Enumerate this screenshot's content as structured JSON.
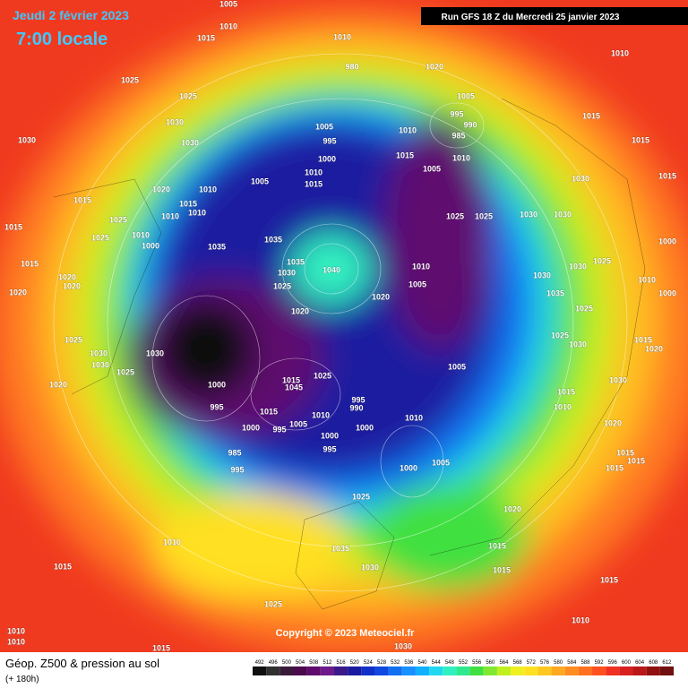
{
  "header": {
    "date": "Jeudi 2 février 2023",
    "time": "7:00 locale",
    "run": "Run GFS 18 Z du Mercredi 25 janvier 2023"
  },
  "copyright": "Copyright © 2023 Meteociel.fr",
  "footer": {
    "title": "Géop. Z500 & pression au sol",
    "lead": "(+ 180h)"
  },
  "colorbar": {
    "ticks": [
      492,
      496,
      500,
      504,
      508,
      512,
      516,
      520,
      524,
      528,
      532,
      536,
      540,
      544,
      548,
      552,
      556,
      560,
      564,
      568,
      572,
      576,
      580,
      584,
      588,
      592,
      596,
      600,
      604,
      608,
      612
    ],
    "colors": [
      "#101010",
      "#303030",
      "#3a1a3a",
      "#4b0a4b",
      "#5e0a6e",
      "#6e1a8a",
      "#3a1a8a",
      "#1a1aa0",
      "#1030c8",
      "#1048e0",
      "#1070f0",
      "#1890ff",
      "#10b0ff",
      "#20d8f0",
      "#30f0c0",
      "#30e890",
      "#40e040",
      "#80e830",
      "#c0f020",
      "#f0f020",
      "#ffe020",
      "#ffc820",
      "#ffa820",
      "#ff8c20",
      "#ff7020",
      "#ff5020",
      "#f03020",
      "#d82020",
      "#b81818",
      "#901010",
      "#701010"
    ]
  },
  "isobar_labels": [
    1005,
    1015,
    1010,
    1025,
    1025,
    1030,
    1030,
    1030,
    1010,
    980,
    1020,
    1010,
    1005,
    995,
    990,
    985,
    1010,
    1010,
    1015,
    1005,
    1005,
    995,
    1000,
    1010,
    1015,
    1005,
    1020,
    1010,
    1015,
    1010,
    1010,
    1015,
    1025,
    1025,
    1010,
    1000,
    1015,
    1015,
    1035,
    1035,
    1035,
    1030,
    1025,
    1040,
    1020,
    1020,
    1010,
    1005,
    1025,
    1025,
    1030,
    1030,
    1015,
    1015,
    1030,
    1015,
    1000,
    1025,
    1030,
    1030,
    1010,
    1000,
    1035,
    1025,
    1025,
    1030,
    1015,
    1020,
    1030,
    1015,
    1010,
    1020,
    1015,
    1015,
    1015,
    1030,
    1025,
    1025,
    1030,
    1030,
    1020,
    1000,
    995,
    1000,
    995,
    1015,
    1005,
    1025,
    1015,
    1045,
    1010,
    995,
    990,
    1000,
    1000,
    995,
    1010,
    1005,
    1000,
    1005,
    985,
    995,
    1020,
    1025,
    1035,
    1030,
    1015,
    1015,
    1015,
    1010,
    1015,
    1025,
    1010,
    1010,
    1010,
    1015,
    1030,
    1020,
    1020,
    1020
  ]
}
